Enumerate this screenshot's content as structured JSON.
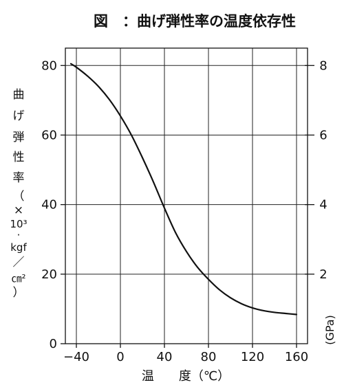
{
  "chart_data": {
    "type": "line",
    "title": "図　：曲げ弾性率の温度依存性",
    "xlabel": "温　　度（℃）",
    "ylabel_lines": [
      "曲",
      "げ",
      "弾",
      "性",
      "率",
      "（",
      "×",
      "10³",
      "·",
      "kgf",
      "／",
      "㎝²",
      "）"
    ],
    "y2label": "(GPa)",
    "xlim": [
      -50,
      170
    ],
    "ylim": [
      0,
      85
    ],
    "y2lim": [
      0,
      8.5
    ],
    "x_ticks": [
      -40,
      0,
      40,
      80,
      120,
      160
    ],
    "x_tick_labels": [
      "−40",
      "0",
      "40",
      "80",
      "120",
      "160"
    ],
    "y_ticks": [
      0,
      20,
      40,
      60,
      80
    ],
    "y_tick_labels": [
      "0",
      "20",
      "40",
      "60",
      "80"
    ],
    "y2_ticks": [
      2,
      4,
      6,
      8
    ],
    "y2_tick_labels": [
      "2",
      "4",
      "6",
      "8"
    ],
    "grid": true,
    "series": [
      {
        "x": [
          -45,
          -40,
          -30,
          -20,
          -10,
          0,
          10,
          20,
          30,
          40,
          50,
          60,
          70,
          80,
          90,
          100,
          110,
          120,
          130,
          140,
          150,
          160
        ],
        "y": [
          80.5,
          79.5,
          77.0,
          74.0,
          70.2,
          65.5,
          60.0,
          53.5,
          46.5,
          39.0,
          32.0,
          26.5,
          22.0,
          18.5,
          15.5,
          13.2,
          11.5,
          10.3,
          9.5,
          9.0,
          8.7,
          8.4
        ]
      }
    ]
  }
}
